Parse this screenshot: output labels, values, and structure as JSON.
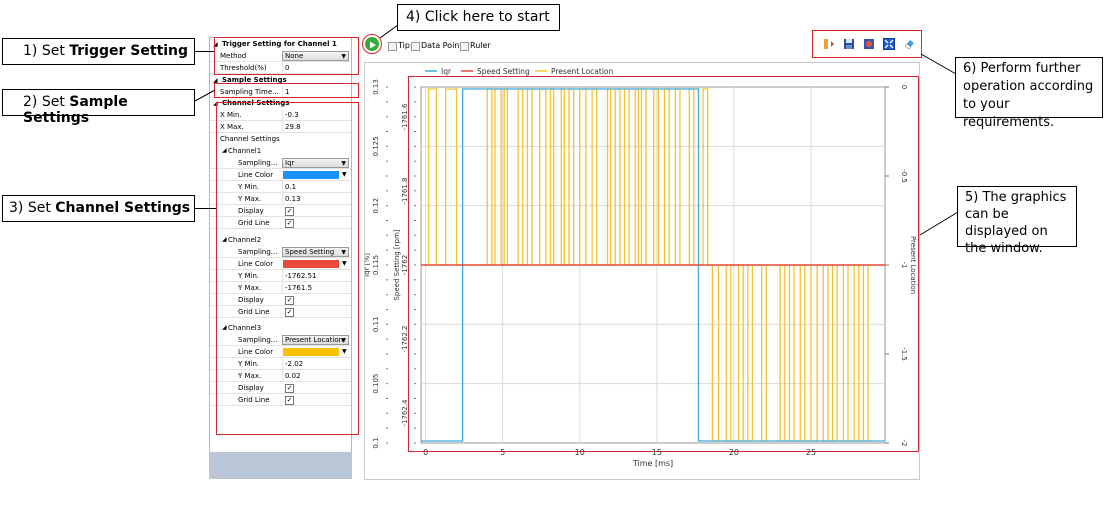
{
  "callouts": {
    "c1_prefix": "1) Set ",
    "c1_bold": "Trigger Setting",
    "c2_prefix": "2) Set ",
    "c2_bold": "Sample Settings",
    "c3_prefix": "3) Set ",
    "c3_bold": "Channel Settings",
    "c4": "4) Click here to start",
    "c5": "5) The graphics can be displayed on the window.",
    "c6": "6) Perform further operation according to your requirements."
  },
  "panel": {
    "trigger_header": "Trigger Setting for Channel 1",
    "method_label": "Method",
    "method_value": "None",
    "threshold_label": "Threshold(%)",
    "threshold_value": "0",
    "sample_header": "Sample Settings",
    "sampling_time_label": "Sampling Time...",
    "sampling_time_value": "1",
    "channel_header": "Channel Settings",
    "xmin_label": "X Min.",
    "xmin_value": "-0.3",
    "xmax_label": "X Max.",
    "xmax_value": "29.8",
    "channel_settings_label": "Channel Settings",
    "channels": [
      {
        "name": "Channel1",
        "sampling_label": "Sampling...",
        "sampling_value": "Iqr",
        "color_label": "Line Color",
        "color": "#1e90ff",
        "ymin_label": "Y Min.",
        "ymin": "0.1",
        "ymax_label": "Y Max.",
        "ymax": "0.13",
        "display_label": "Display",
        "grid_label": "Grid Line"
      },
      {
        "name": "Channel2",
        "sampling_label": "Sampling...",
        "sampling_value": "Speed Setting",
        "color_label": "Line Color",
        "color": "#e84a3c",
        "ymin_label": "Y Min.",
        "ymin": "-1762.51",
        "ymax_label": "Y Max.",
        "ymax": "-1761.5",
        "display_label": "Display",
        "grid_label": "Grid Line"
      },
      {
        "name": "Channel3",
        "sampling_label": "Sampling...",
        "sampling_value": "Present Location",
        "color_label": "Line Color",
        "color": "#ffc000",
        "ymin_label": "Y Min.",
        "ymin": "-2.02",
        "ymax_label": "Y Max.",
        "ymax": "0.02",
        "display_label": "Display",
        "grid_label": "Grid Line"
      }
    ]
  },
  "toolbar": {
    "tip_label": "Tip",
    "data_point_label": "Data Point",
    "ruler_label": "Ruler",
    "icons": [
      "play-icon",
      "import-icon",
      "save-icon",
      "screenshot-icon",
      "fit-icon",
      "eraser-icon"
    ]
  },
  "chart_data": {
    "type": "line",
    "xlabel": "Time [ms]",
    "x_ticks": [
      "0",
      "5",
      "10",
      "15",
      "20",
      "25"
    ],
    "xlim": [
      -0.3,
      29.8
    ],
    "axes": [
      {
        "label": "Iqr [%]",
        "ticks": [
          "0.13",
          "0.125",
          "0.12",
          "0.115",
          "0.11",
          "0.105",
          "0.1"
        ]
      },
      {
        "label": "Speed Setting [rpm]",
        "ticks": [
          "-1761.6",
          "-1761.8",
          "-1762",
          "-1762.2",
          "-1762.4"
        ]
      },
      {
        "label": "Present Location",
        "ticks": [
          "0",
          "-0.5",
          "-1",
          "-1.5",
          "-2"
        ]
      }
    ],
    "series": [
      {
        "name": "Iqr",
        "color": "#3fa8dc",
        "points": [
          [
            -0.3,
            0.1
          ],
          [
            2.4,
            0.1
          ],
          [
            2.4,
            0.13
          ],
          [
            17.7,
            0.13
          ],
          [
            17.7,
            0.1
          ],
          [
            29.8,
            0.1
          ]
        ]
      },
      {
        "name": "Speed Setting",
        "color": "#e84a3c",
        "points": [
          [
            -0.3,
            -1762.0
          ],
          [
            29.8,
            -1762.0
          ]
        ]
      },
      {
        "name": "Present Location",
        "color": "#f4c430",
        "pulses": [
          [
            0.2,
            0.7
          ],
          [
            1.3,
            2.0
          ],
          [
            4.0,
            4.3
          ],
          [
            4.5,
            4.9
          ],
          [
            5.1,
            5.3
          ],
          [
            6.0,
            6.3
          ],
          [
            6.6,
            6.9
          ],
          [
            7.4,
            7.8
          ],
          [
            8.1,
            8.3
          ],
          [
            8.8,
            9.0
          ],
          [
            9.3,
            9.6
          ],
          [
            10.0,
            10.4
          ],
          [
            10.8,
            11.1
          ],
          [
            11.8,
            12.0
          ],
          [
            12.3,
            12.6
          ],
          [
            12.9,
            13.2
          ],
          [
            13.6,
            13.8
          ],
          [
            14.0,
            14.3
          ],
          [
            14.8,
            15.1
          ],
          [
            15.5,
            15.8
          ],
          [
            16.2,
            16.5
          ],
          [
            17.1,
            17.4
          ],
          [
            18.0,
            18.3
          ]
        ],
        "dips": [
          [
            18.6,
            19.0
          ],
          [
            19.5,
            19.8
          ],
          [
            20.3,
            20.6
          ],
          [
            20.9,
            21.2
          ],
          [
            21.8,
            22.1
          ],
          [
            23.0,
            23.3
          ],
          [
            23.6,
            23.9
          ],
          [
            24.3,
            24.6
          ],
          [
            25.0,
            25.4
          ],
          [
            25.8,
            26.1
          ],
          [
            26.4,
            26.7
          ],
          [
            27.1,
            27.4
          ],
          [
            27.8,
            28.1
          ],
          [
            28.4,
            28.7
          ]
        ]
      }
    ],
    "legend_position": "top-left",
    "grid": true
  }
}
